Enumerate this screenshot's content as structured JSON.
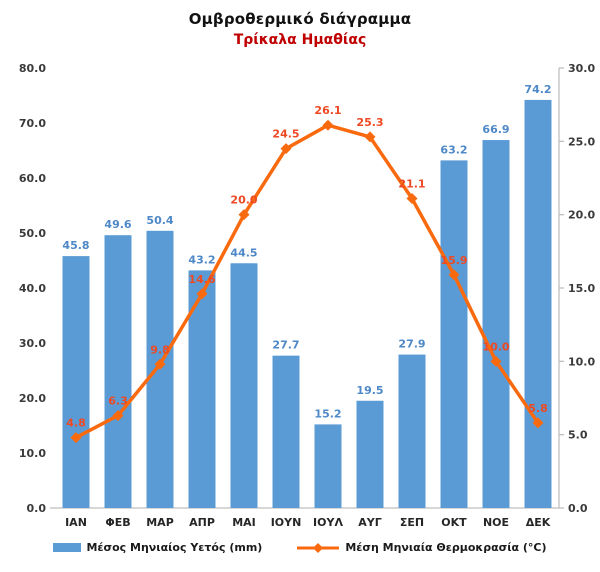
{
  "title": "Ομβροθερμικό διάγραμμα",
  "subtitle": "Τρίκαλα Ημαθίας",
  "colors": {
    "subtitle": "#C00000",
    "axis_line": "#BFBFBF",
    "axis_text": "#3A3A3A"
  },
  "chart_data": {
    "type": "combo (bar + line)",
    "title": "Ομβροθερμικό διάγραμμα",
    "subtitle": "Τρίκαλα Ημαθίας",
    "categories": [
      "ΙΑΝ",
      "ΦΕΒ",
      "ΜΑΡ",
      "ΑΠΡ",
      "ΜΑΙ",
      "ΙΟΥΝ",
      "ΙΟΥΛ",
      "ΑΥΓ",
      "ΣΕΠ",
      "ΟΚΤ",
      "ΝΟΕ",
      "ΔΕΚ"
    ],
    "series": [
      {
        "name": "Μέσος Μηνιαίος Υετός (mm)",
        "type": "bar",
        "axis": "left",
        "color": "#5B9BD5",
        "label_color": "#4E88C7",
        "values": [
          45.8,
          49.6,
          50.4,
          43.2,
          44.5,
          27.7,
          15.2,
          19.5,
          27.9,
          63.2,
          66.9,
          74.2
        ]
      },
      {
        "name": "Μέση Μηνιαία Θερμοκρασία (°C)",
        "type": "line",
        "axis": "right",
        "color": "#F96A0F",
        "label_color": "#EE4923",
        "marker": "diamond",
        "values": [
          4.8,
          6.3,
          9.8,
          14.6,
          20.0,
          24.5,
          26.1,
          25.3,
          21.1,
          15.9,
          10.0,
          5.8
        ]
      }
    ],
    "axes": {
      "left": {
        "min": 0,
        "max": 80,
        "step": 10,
        "decimals": 1
      },
      "right": {
        "min": 0,
        "max": 30,
        "step": 5,
        "decimals": 1
      }
    },
    "grid": false,
    "data_labels": true,
    "legend_position": "bottom"
  }
}
